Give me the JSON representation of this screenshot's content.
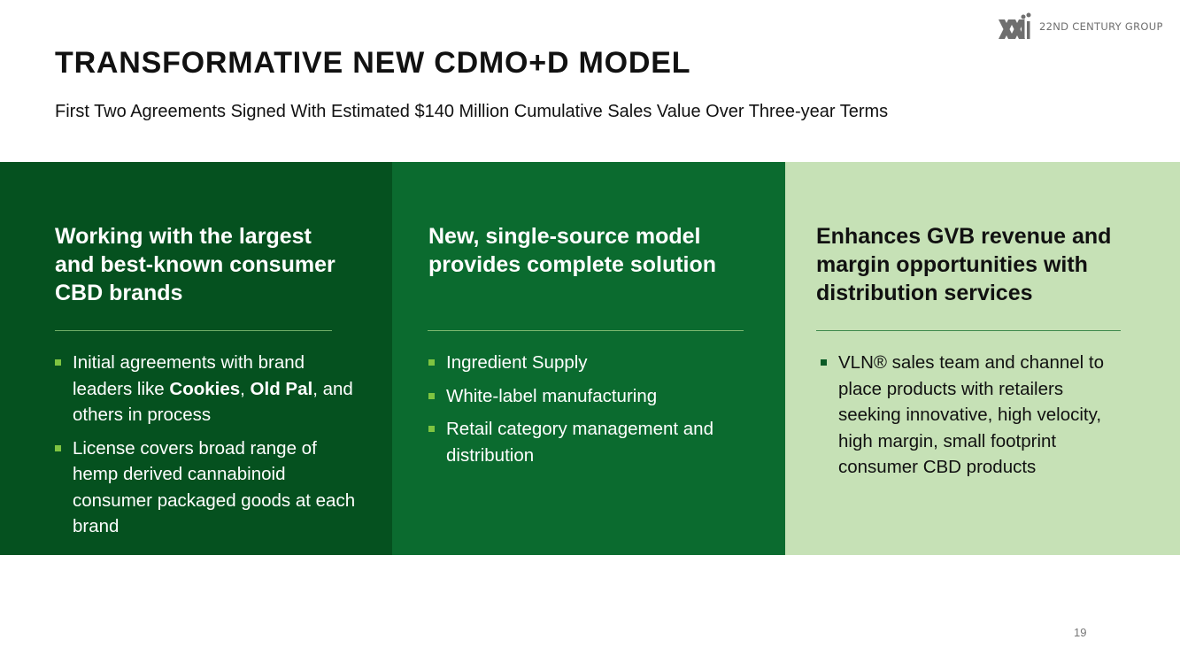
{
  "logo": {
    "text": "22ND CENTURY GROUP",
    "icon": "xxii-logo-icon"
  },
  "header": {
    "title": "TRANSFORMATIVE NEW CDMO+D MODEL",
    "subtitle": "First Two Agreements Signed With Estimated $140 Million Cumulative Sales Value Over Three-year Terms"
  },
  "panels": [
    {
      "heading": "Working with the largest and best-known consumer CBD brands",
      "bullets": [
        {
          "pre": "Initial agreements with brand leaders like ",
          "bold1": "Cookies",
          "mid": ", ",
          "bold2": "Old Pal",
          "post": ", and others in process"
        },
        {
          "text": "License covers broad range of hemp derived cannabinoid consumer packaged goods at each brand"
        }
      ],
      "color": "#05511f"
    },
    {
      "heading": "New, single-source model provides complete solution",
      "bullets": [
        {
          "text": "Ingredient Supply"
        },
        {
          "text": "White-label manufacturing"
        },
        {
          "text": "Retail category management and distribution"
        }
      ],
      "color": "#0b6b2f"
    },
    {
      "heading": "Enhances GVB revenue and margin opportunities with distribution services",
      "bullets": [
        {
          "text": "VLN® sales team and channel to place products with retailers seeking innovative, high velocity, high margin, small footprint consumer CBD products"
        }
      ],
      "color": "#c6e1b6"
    }
  ],
  "footer": {
    "page_number": "19"
  }
}
